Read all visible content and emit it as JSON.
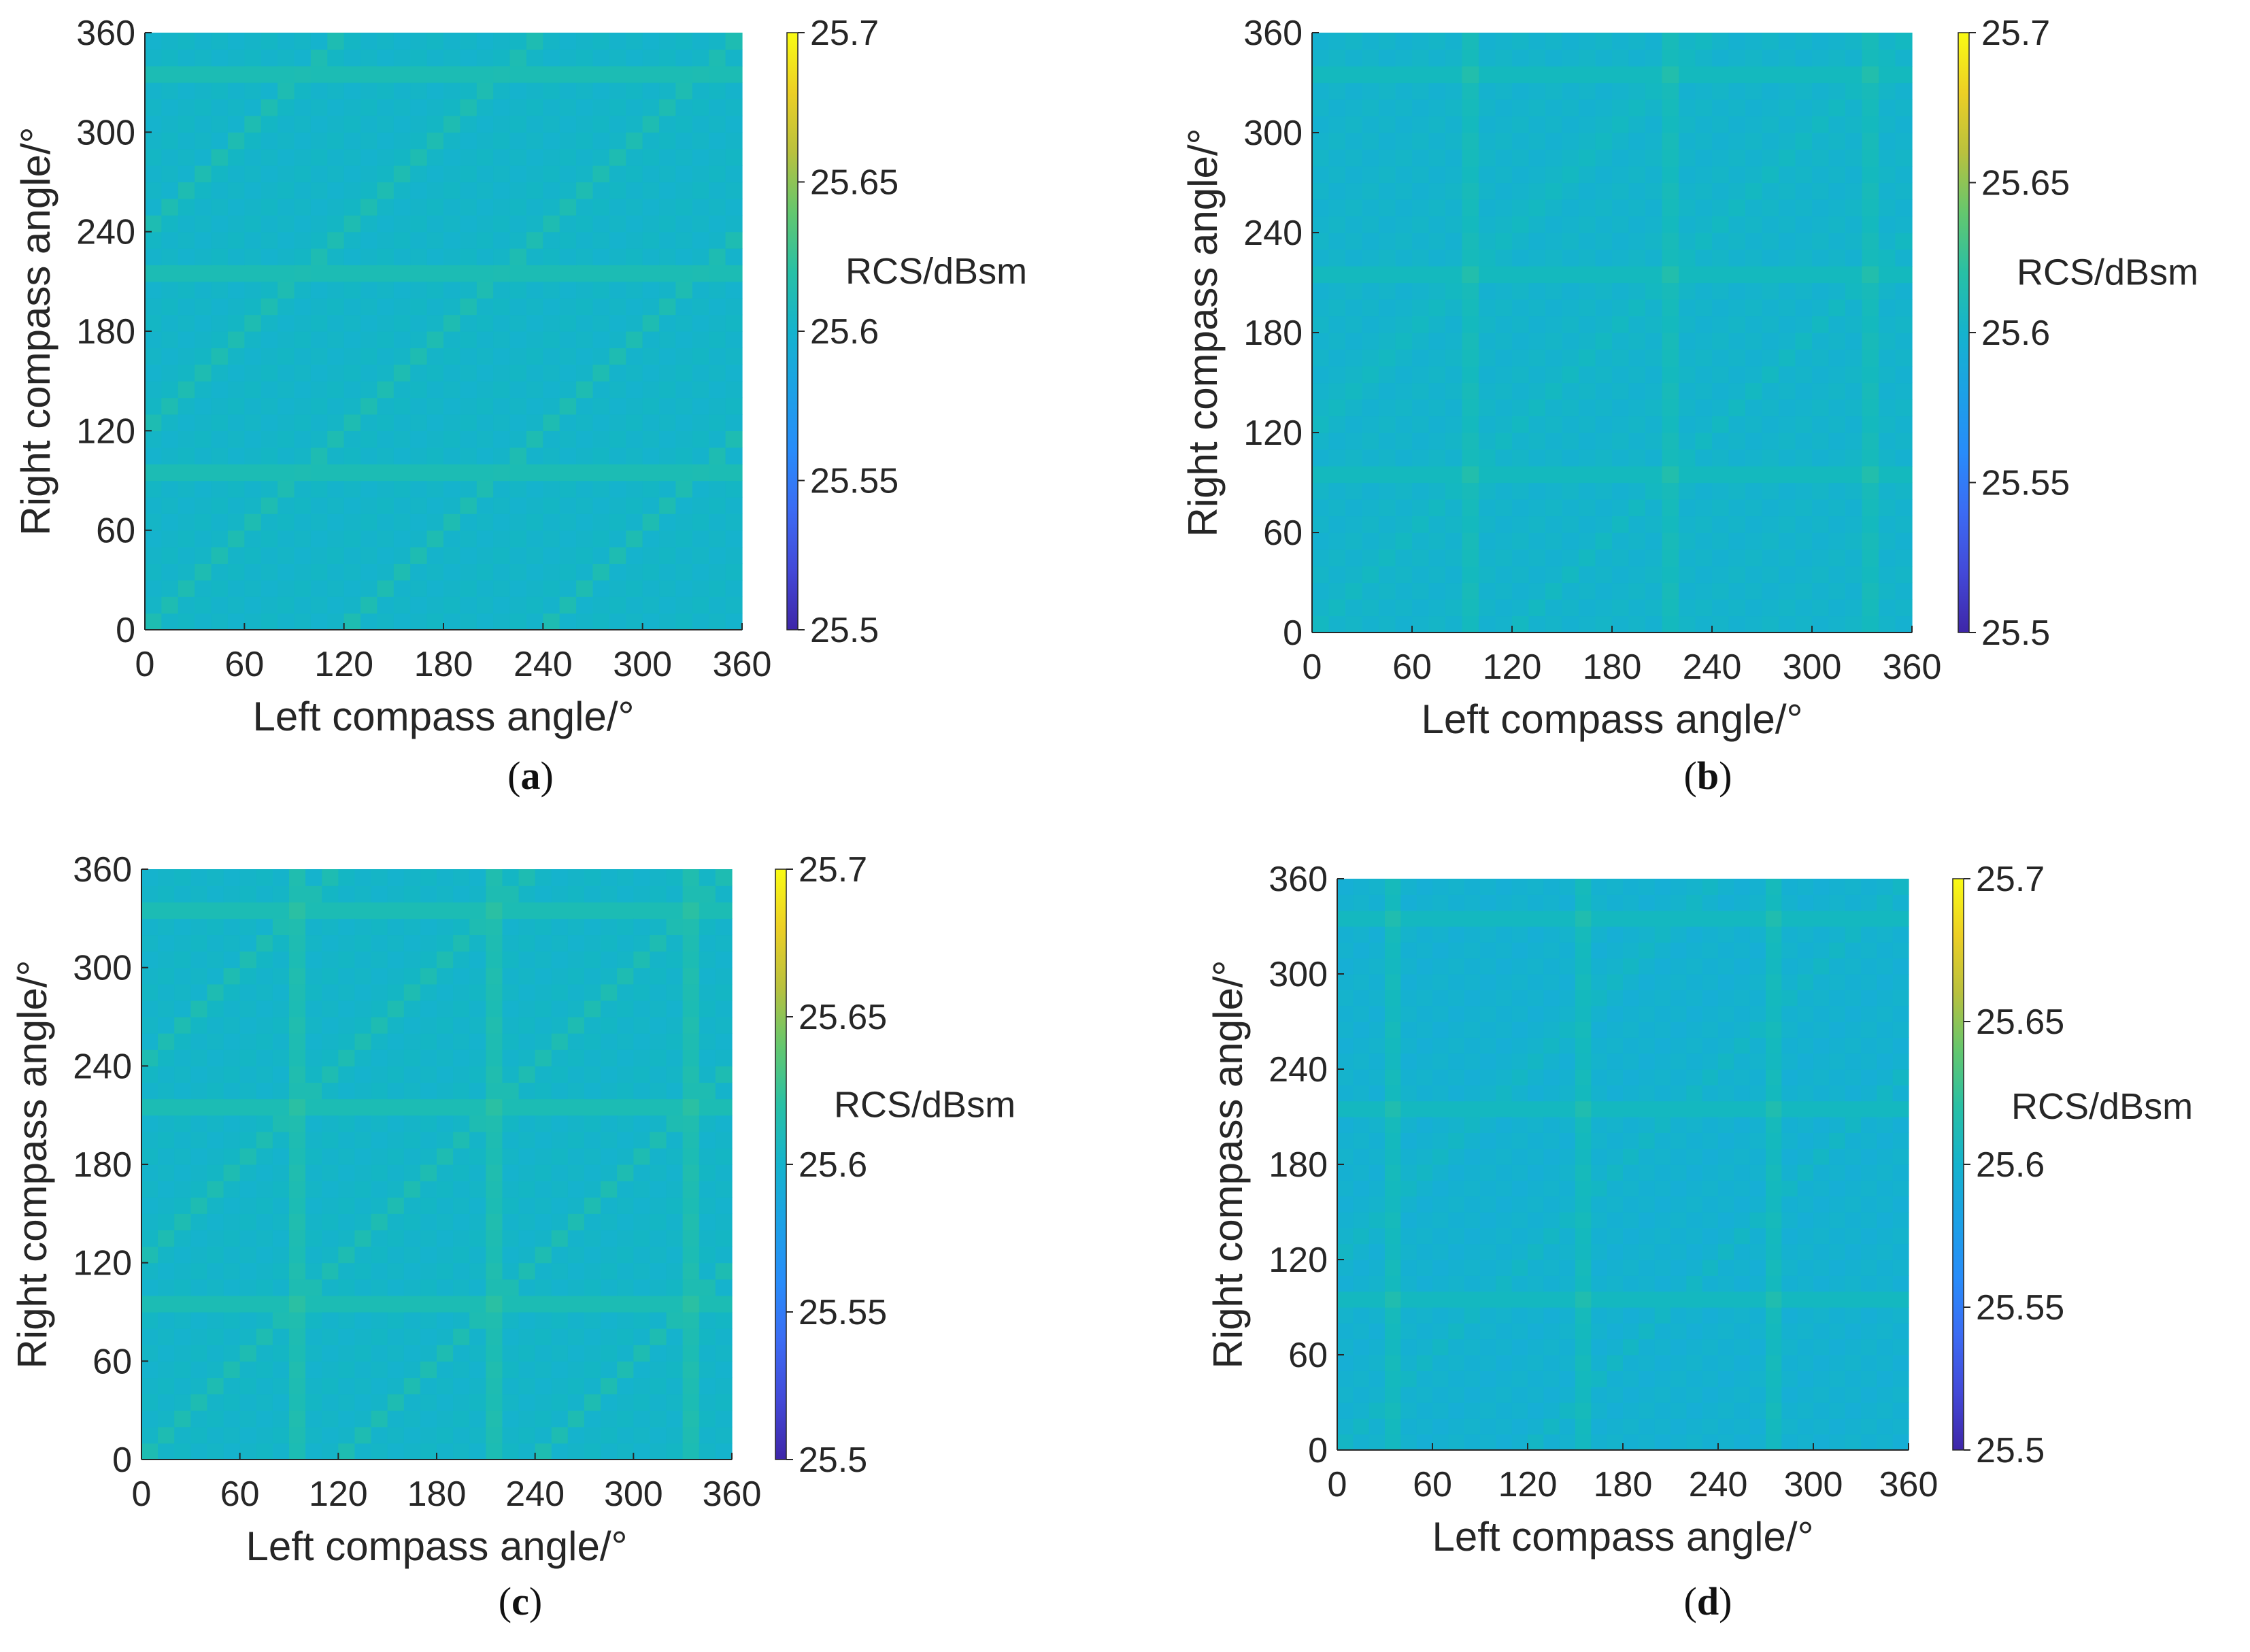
{
  "chart_data": [
    {
      "type": "heatmap",
      "panel_label": "a",
      "xlabel": "Left compass angle/°",
      "ylabel": "Right compass angle/°",
      "x_range": [
        0,
        360
      ],
      "y_range": [
        0,
        360
      ],
      "x_ticks": [
        "0",
        "60",
        "120",
        "180",
        "240",
        "300",
        "360"
      ],
      "y_ticks": [
        "0",
        "60",
        "120",
        "180",
        "240",
        "300",
        "360"
      ],
      "grid_cells": 36,
      "base_value": 25.603,
      "stripe_value": 25.615,
      "stripe_rows_deg": [
        95,
        215,
        335
      ],
      "stripe_cols_deg": [],
      "diagonal_value": 25.615,
      "diagonal_offsets_deg": [
        -240,
        -120,
        0,
        120,
        240
      ],
      "colorbar": {
        "label": "RCS/dBsm",
        "min": 25.5,
        "max": 25.7,
        "ticks": [
          "25.5",
          "25.55",
          "25.6",
          "25.65",
          "25.7"
        ]
      }
    },
    {
      "type": "heatmap",
      "panel_label": "b",
      "xlabel": "Left compass angle/°",
      "ylabel": "Right compass angle/°",
      "x_range": [
        0,
        360
      ],
      "y_range": [
        0,
        360
      ],
      "x_ticks": [
        "0",
        "60",
        "120",
        "180",
        "240",
        "300",
        "360"
      ],
      "y_ticks": [
        "0",
        "60",
        "120",
        "180",
        "240",
        "300",
        "360"
      ],
      "grid_cells": 36,
      "base_value": 25.601,
      "stripe_value": 25.611,
      "stripe_rows_deg": [
        95,
        215,
        335
      ],
      "stripe_cols_deg": [
        95,
        215,
        335
      ],
      "diagonal_value": 25.608,
      "diagonal_offsets_deg": [
        -120,
        0,
        120
      ],
      "colorbar": {
        "label": "RCS/dBsm",
        "min": 25.5,
        "max": 25.7,
        "ticks": [
          "25.5",
          "25.55",
          "25.6",
          "25.65",
          "25.7"
        ]
      }
    },
    {
      "type": "heatmap",
      "panel_label": "c",
      "xlabel": "Left compass angle/°",
      "ylabel": "Right compass angle/°",
      "x_range": [
        0,
        360
      ],
      "y_range": [
        0,
        360
      ],
      "x_ticks": [
        "0",
        "60",
        "120",
        "180",
        "240",
        "300",
        "360"
      ],
      "y_ticks": [
        "0",
        "60",
        "120",
        "180",
        "240",
        "300",
        "360"
      ],
      "grid_cells": 36,
      "base_value": 25.603,
      "stripe_value": 25.615,
      "stripe_rows_deg": [
        95,
        215,
        335
      ],
      "stripe_cols_deg": [
        95,
        215,
        335
      ],
      "diagonal_value": 25.615,
      "diagonal_offsets_deg": [
        -240,
        -120,
        0,
        120,
        240
      ],
      "colorbar": {
        "label": "RCS/dBsm",
        "min": 25.5,
        "max": 25.7,
        "ticks": [
          "25.5",
          "25.55",
          "25.6",
          "25.65",
          "25.7"
        ]
      }
    },
    {
      "type": "heatmap",
      "panel_label": "d",
      "xlabel": "Left compass angle/°",
      "ylabel": "Right compass angle/°",
      "x_range": [
        0,
        360
      ],
      "y_range": [
        0,
        360
      ],
      "x_ticks": [
        "0",
        "60",
        "120",
        "180",
        "240",
        "300",
        "360"
      ],
      "y_ticks": [
        "0",
        "60",
        "120",
        "180",
        "240",
        "300",
        "360"
      ],
      "grid_cells": 36,
      "base_value": 25.598,
      "stripe_value": 25.61,
      "stripe_rows_deg": [
        95,
        215,
        335
      ],
      "stripe_cols_deg": [
        35,
        155,
        275
      ],
      "diagonal_value": 25.606,
      "diagonal_offsets_deg": [
        -120,
        0,
        120
      ],
      "colorbar": {
        "label": "RCS/dBsm",
        "min": 25.5,
        "max": 25.7,
        "ticks": [
          "25.5",
          "25.55",
          "25.6",
          "25.65",
          "25.7"
        ]
      }
    }
  ]
}
